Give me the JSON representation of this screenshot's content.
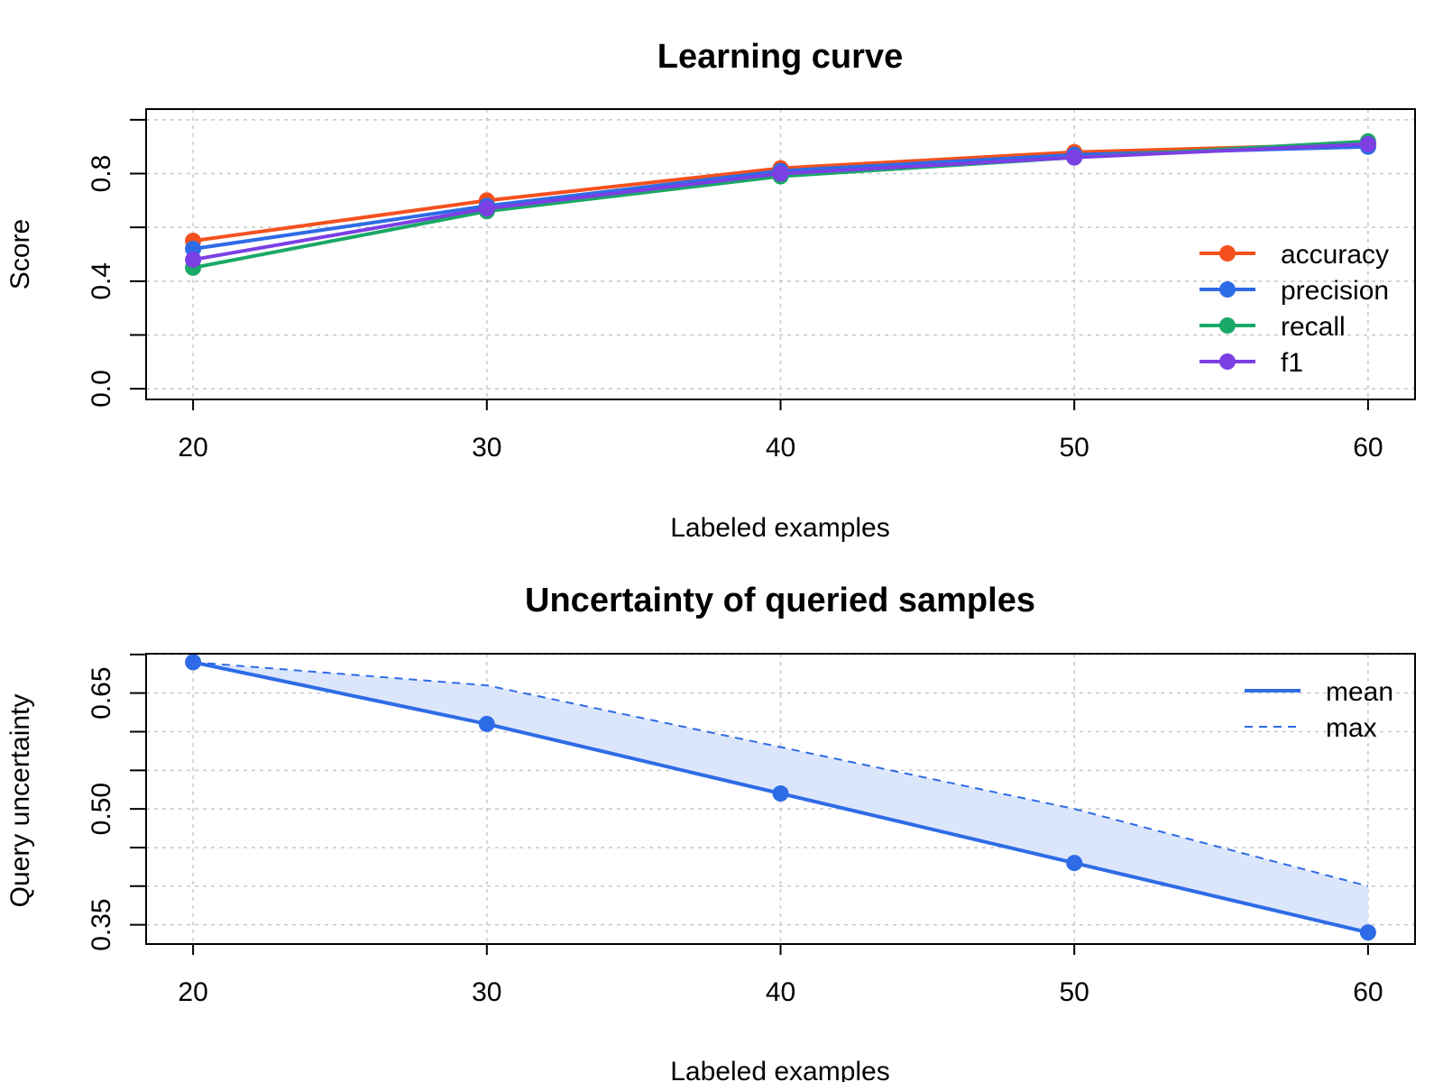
{
  "chart_data": [
    {
      "type": "line",
      "title": "Learning curve",
      "xlabel": "Labeled examples",
      "ylabel": "Score",
      "x": [
        20,
        30,
        40,
        50,
        60
      ],
      "xlim": [
        18.4,
        61.6
      ],
      "ylim": [
        -0.04,
        1.04
      ],
      "xticks": [
        "20",
        "30",
        "40",
        "50",
        "60"
      ],
      "yticks": [
        "0.0",
        "0.4",
        "0.8"
      ],
      "grid": true,
      "legend_position": "right",
      "series": [
        {
          "name": "accuracy",
          "values": [
            0.55,
            0.7,
            0.82,
            0.88,
            0.91
          ],
          "color": "#f4511e"
        },
        {
          "name": "precision",
          "values": [
            0.52,
            0.68,
            0.81,
            0.87,
            0.9
          ],
          "color": "#2e6be6"
        },
        {
          "name": "recall",
          "values": [
            0.45,
            0.66,
            0.79,
            0.86,
            0.92
          ],
          "color": "#1aa866"
        },
        {
          "name": "f1",
          "values": [
            0.48,
            0.67,
            0.8,
            0.86,
            0.91
          ],
          "color": "#7b3fe4"
        }
      ]
    },
    {
      "type": "area",
      "title": "Uncertainty of queried samples",
      "xlabel": "Labeled examples",
      "ylabel": "Query uncertainty",
      "x": [
        20,
        30,
        40,
        50,
        60
      ],
      "xlim": [
        18.4,
        61.6
      ],
      "ylim": [
        0.325,
        0.701
      ],
      "xticks": [
        "20",
        "30",
        "40",
        "50",
        "60"
      ],
      "yticks": [
        "0.35",
        "0.50",
        "0.65"
      ],
      "grid": true,
      "legend_position": "top-right",
      "fill_color": "#dce6fb",
      "series": [
        {
          "name": "mean",
          "values": [
            0.69,
            0.61,
            0.52,
            0.43,
            0.34
          ],
          "color": "#2e6be6",
          "style": "solid",
          "markers": true
        },
        {
          "name": "max",
          "values": [
            0.69,
            0.66,
            0.58,
            0.5,
            0.4
          ],
          "color": "#2e6be6",
          "style": "dashed",
          "markers": false
        }
      ]
    }
  ]
}
